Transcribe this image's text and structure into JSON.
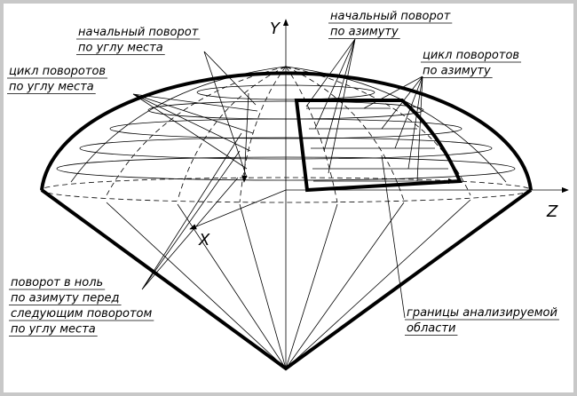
{
  "axes": {
    "y": "Y",
    "z": "Z",
    "x": "X"
  },
  "labels": [
    {
      "lines": [
        "начальный поворот",
        "по углу места"
      ]
    },
    {
      "lines": [
        "начальный поворот",
        "по азимуту"
      ]
    },
    {
      "lines": [
        "цикл поворотов",
        "по углу места"
      ]
    },
    {
      "lines": [
        "цикл поворотов",
        "по азимуту"
      ]
    },
    {
      "lines": [
        "поворот в ноль",
        "по азимуту перед",
        "следующим поворотом",
        "по углу места"
      ]
    },
    {
      "lines": [
        "границы анализируемой",
        "области"
      ]
    }
  ]
}
